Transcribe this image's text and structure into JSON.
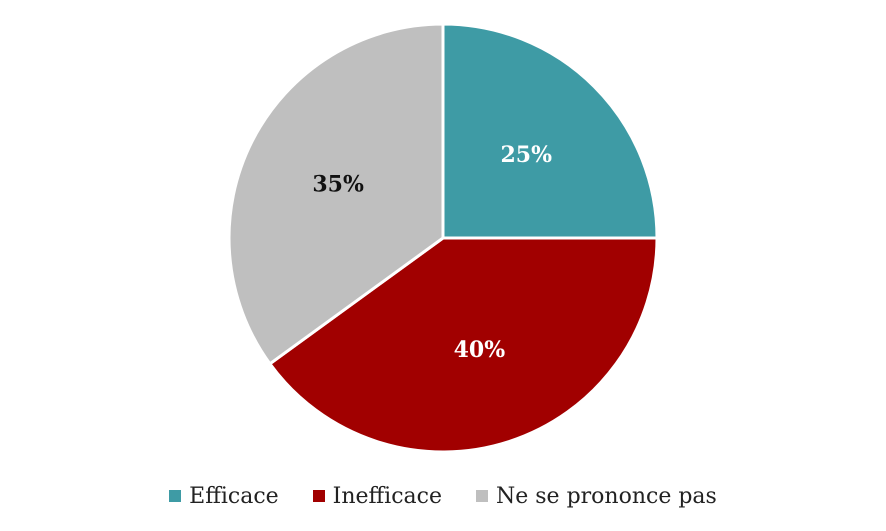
{
  "chart_data": {
    "type": "pie",
    "title": "",
    "slices": [
      {
        "name": "Efficace",
        "value": 25,
        "label": "25%",
        "color": "#3e9ba5",
        "label_color": "#ffffff"
      },
      {
        "name": "Inefficace",
        "value": 40,
        "label": "40%",
        "color": "#a10000",
        "label_color": "#ffffff"
      },
      {
        "name": "Ne se prononce pas",
        "value": 35,
        "label": "35%",
        "color": "#bfbfbf",
        "label_color": "#111111"
      }
    ],
    "start_angle_deg": 0,
    "direction": "clockwise",
    "legend_position": "bottom"
  }
}
